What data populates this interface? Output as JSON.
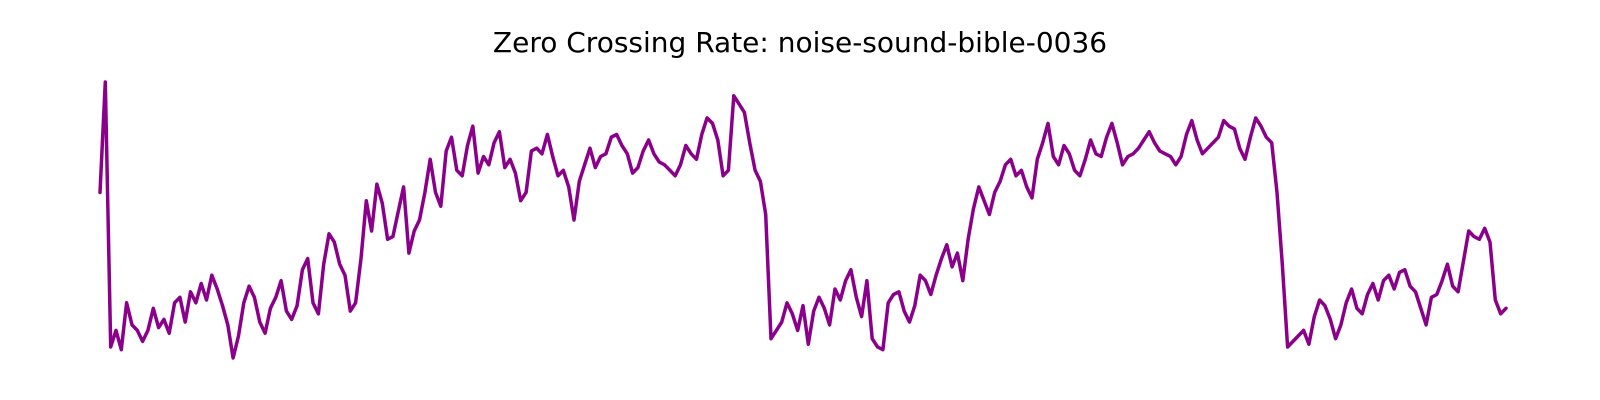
{
  "chart_data": {
    "type": "line",
    "title": "Zero Crossing Rate: noise-sound-bible-0036",
    "xlabel": "",
    "ylabel": "",
    "axes_visible": false,
    "grid": false,
    "line_color": "#8b008b",
    "series": [
      {
        "values": [
          0.6,
          1.0,
          0.04,
          0.1,
          0.03,
          0.2,
          0.12,
          0.1,
          0.06,
          0.1,
          0.18,
          0.11,
          0.14,
          0.09,
          0.2,
          0.22,
          0.13,
          0.24,
          0.2,
          0.27,
          0.21,
          0.3,
          0.25,
          0.19,
          0.12,
          0.0,
          0.08,
          0.2,
          0.26,
          0.22,
          0.13,
          0.09,
          0.18,
          0.22,
          0.28,
          0.17,
          0.14,
          0.19,
          0.32,
          0.36,
          0.2,
          0.16,
          0.34,
          0.45,
          0.42,
          0.34,
          0.3,
          0.17,
          0.2,
          0.36,
          0.57,
          0.46,
          0.63,
          0.56,
          0.43,
          0.44,
          0.53,
          0.62,
          0.38,
          0.46,
          0.5,
          0.6,
          0.72,
          0.6,
          0.55,
          0.75,
          0.8,
          0.68,
          0.66,
          0.77,
          0.84,
          0.67,
          0.73,
          0.7,
          0.78,
          0.82,
          0.69,
          0.72,
          0.67,
          0.57,
          0.6,
          0.75,
          0.76,
          0.74,
          0.81,
          0.73,
          0.66,
          0.68,
          0.62,
          0.5,
          0.64,
          0.7,
          0.76,
          0.69,
          0.73,
          0.74,
          0.8,
          0.81,
          0.77,
          0.74,
          0.67,
          0.69,
          0.75,
          0.79,
          0.74,
          0.71,
          0.7,
          0.68,
          0.66,
          0.7,
          0.77,
          0.74,
          0.72,
          0.81,
          0.87,
          0.85,
          0.79,
          0.66,
          0.68,
          0.95,
          0.92,
          0.89,
          0.78,
          0.68,
          0.64,
          0.52,
          0.07,
          0.1,
          0.13,
          0.2,
          0.16,
          0.1,
          0.19,
          0.05,
          0.17,
          0.22,
          0.18,
          0.12,
          0.25,
          0.21,
          0.28,
          0.32,
          0.22,
          0.15,
          0.28,
          0.07,
          0.04,
          0.03,
          0.2,
          0.23,
          0.24,
          0.17,
          0.13,
          0.19,
          0.3,
          0.28,
          0.23,
          0.3,
          0.36,
          0.41,
          0.33,
          0.38,
          0.28,
          0.43,
          0.54,
          0.62,
          0.57,
          0.52,
          0.6,
          0.64,
          0.7,
          0.72,
          0.66,
          0.68,
          0.62,
          0.58,
          0.72,
          0.78,
          0.85,
          0.73,
          0.7,
          0.77,
          0.74,
          0.68,
          0.66,
          0.72,
          0.79,
          0.74,
          0.73,
          0.8,
          0.85,
          0.78,
          0.7,
          0.73,
          0.74,
          0.76,
          0.79,
          0.82,
          0.78,
          0.75,
          0.74,
          0.73,
          0.7,
          0.73,
          0.81,
          0.86,
          0.79,
          0.74,
          0.76,
          0.78,
          0.8,
          0.86,
          0.84,
          0.83,
          0.76,
          0.72,
          0.8,
          0.87,
          0.84,
          0.8,
          0.78,
          0.6,
          0.34,
          0.04,
          0.06,
          0.08,
          0.1,
          0.05,
          0.15,
          0.21,
          0.19,
          0.14,
          0.07,
          0.12,
          0.2,
          0.25,
          0.18,
          0.16,
          0.23,
          0.27,
          0.21,
          0.28,
          0.3,
          0.25,
          0.31,
          0.32,
          0.26,
          0.24,
          0.18,
          0.12,
          0.22,
          0.23,
          0.28,
          0.34,
          0.26,
          0.24,
          0.35,
          0.46,
          0.44,
          0.43,
          0.47,
          0.42,
          0.21,
          0.16,
          0.18
        ]
      }
    ]
  }
}
